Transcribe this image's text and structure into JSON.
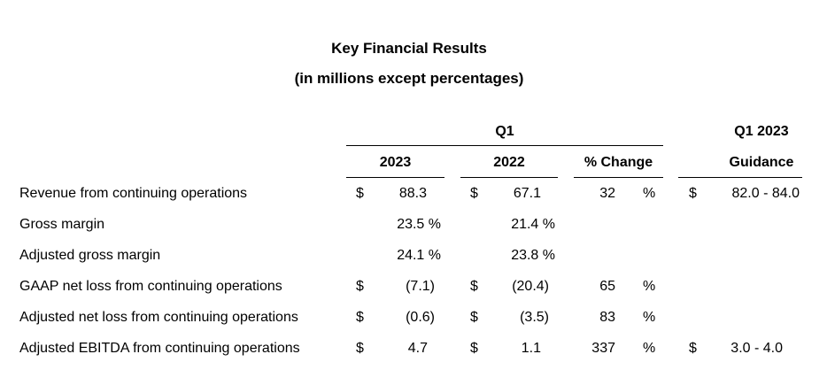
{
  "title": "Key Financial Results",
  "subtitle": "(in millions except percentages)",
  "header": {
    "q1": "Q1",
    "q1_2023": "Q1 2023",
    "col_2023": "2023",
    "col_2022": "2022",
    "col_change": "% Change",
    "col_guidance": "Guidance"
  },
  "rows": [
    {
      "label": "Revenue from continuing operations",
      "cur_2023": "$",
      "val_2023": "88.3",
      "cur_2022": "$",
      "val_2022": "67.1",
      "change": "32",
      "pct": "%",
      "cur_guid": "$",
      "guidance": "82.0 - 84.0"
    },
    {
      "label": "Gross margin",
      "cur_2023": "",
      "val_2023": "23.5 %",
      "cur_2022": "",
      "val_2022": "21.4 %",
      "change": "",
      "pct": "",
      "cur_guid": "",
      "guidance": ""
    },
    {
      "label": "Adjusted gross margin",
      "cur_2023": "",
      "val_2023": "24.1 %",
      "cur_2022": "",
      "val_2022": "23.8 %",
      "change": "",
      "pct": "",
      "cur_guid": "",
      "guidance": ""
    },
    {
      "label": "GAAP net loss from continuing operations",
      "cur_2023": "$",
      "val_2023": "(7.1)",
      "cur_2022": "$",
      "val_2022": "(20.4)",
      "change": "65",
      "pct": "%",
      "cur_guid": "",
      "guidance": ""
    },
    {
      "label": "Adjusted net loss from continuing operations",
      "cur_2023": "$",
      "val_2023": "(0.6)",
      "cur_2022": "$",
      "val_2022": "(3.5)",
      "change": "83",
      "pct": "%",
      "cur_guid": "",
      "guidance": ""
    },
    {
      "label": "Adjusted EBITDA from continuing operations",
      "cur_2023": "$",
      "val_2023": "4.7",
      "cur_2022": "$",
      "val_2022": "1.1",
      "change": "337",
      "pct": "%",
      "cur_guid": "$",
      "guidance": "3.0 - 4.0"
    }
  ]
}
